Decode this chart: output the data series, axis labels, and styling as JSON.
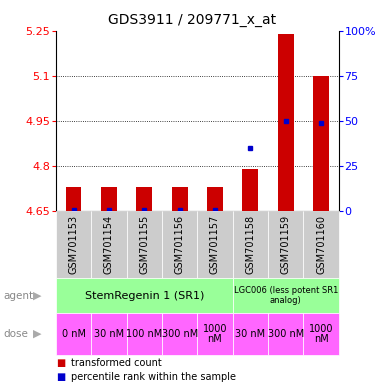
{
  "title": "GDS3911 / 209771_x_at",
  "samples": [
    "GSM701153",
    "GSM701154",
    "GSM701155",
    "GSM701156",
    "GSM701157",
    "GSM701158",
    "GSM701159",
    "GSM701160"
  ],
  "bar_values": [
    4.73,
    4.73,
    4.73,
    4.73,
    4.73,
    4.79,
    5.24,
    5.1
  ],
  "bar_base": 4.65,
  "percentile_values": [
    0.5,
    0.5,
    0.5,
    0.5,
    0.5,
    35.0,
    50.0,
    49.0
  ],
  "ylim": [
    4.65,
    5.25
  ],
  "y_left_ticks": [
    4.65,
    4.8,
    4.95,
    5.1,
    5.25
  ],
  "y_right_ticks": [
    0,
    25,
    50,
    75,
    100
  ],
  "ytick_labels_left": [
    "4.65",
    "4.8",
    "4.95",
    "5.1",
    "5.25"
  ],
  "ytick_labels_right": [
    "0",
    "25",
    "50",
    "75",
    "100%"
  ],
  "bar_color": "#cc0000",
  "percentile_color": "#0000cc",
  "grid_color": "#000000",
  "doses": [
    "0 nM",
    "30 nM",
    "100 nM",
    "300 nM",
    "1000\nnM",
    "30 nM",
    "300 nM",
    "1000\nnM"
  ],
  "background_plot": "#ffffff",
  "background_samples": "#cccccc",
  "agent_green": "#99ff99",
  "dose_pink": "#ff66ff",
  "title_fontsize": 10,
  "tick_fontsize": 8,
  "sample_fontsize": 7,
  "dose_fontsize": 7,
  "agent_fontsize": 8,
  "legend_fontsize": 7
}
